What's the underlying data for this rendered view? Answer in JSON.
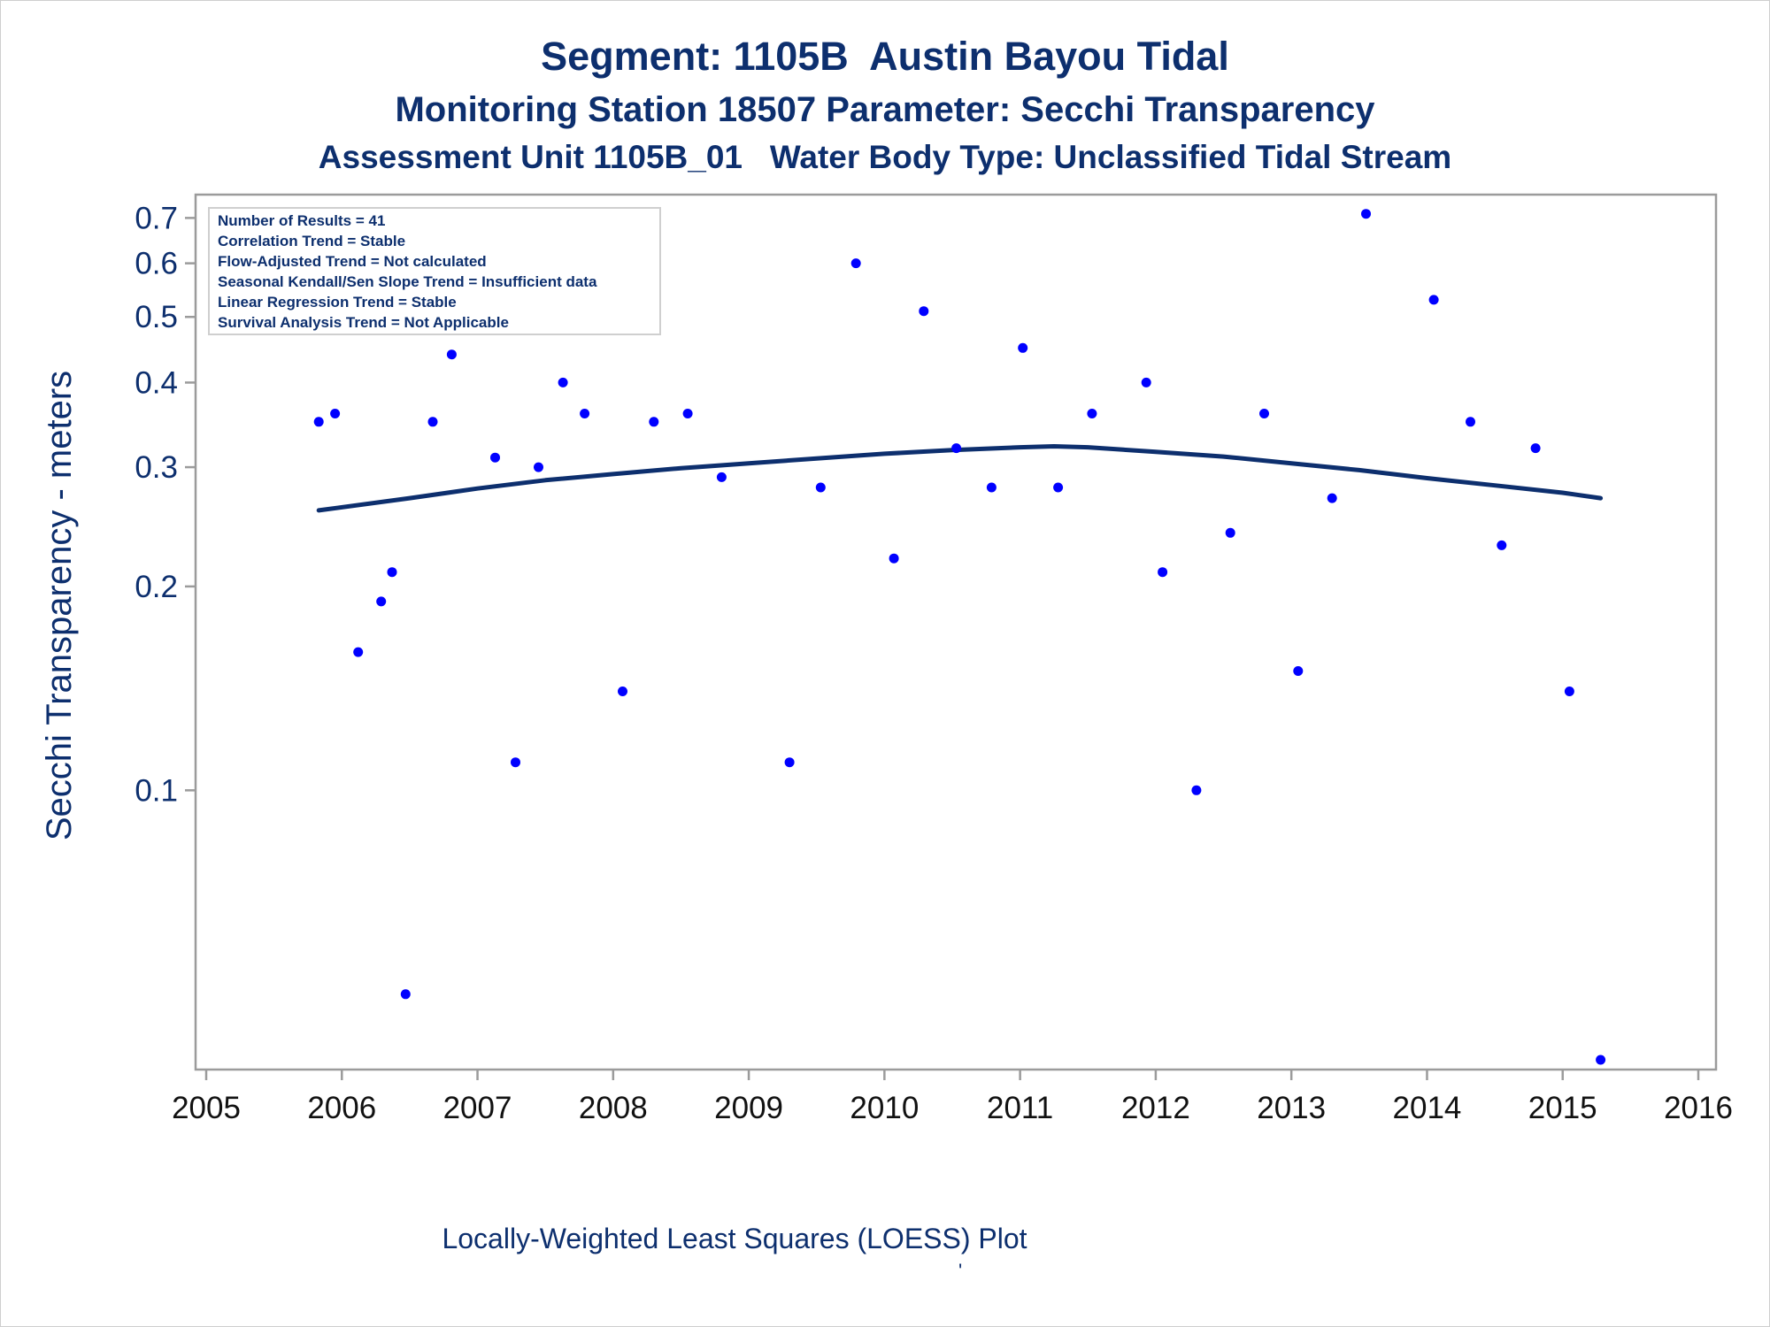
{
  "titles": {
    "line1": "Segment: 1105B  Austin Bayou Tidal",
    "line2": "Monitoring Station 18507 Parameter: Secchi Transparency",
    "line3": "Assessment Unit 1105B_01   Water Body Type: Unclassified Tidal Stream"
  },
  "info_box": [
    "Number of Results = 41",
    "Correlation Trend = Stable",
    "Flow-Adjusted Trend = Not calculated",
    "Seasonal Kendall/Sen Slope Trend = Insufficient data",
    "Linear Regression Trend = Stable",
    "Survival Analysis Trend = Not Applicable"
  ],
  "footnote": "Locally-Weighted Least Squares (LOESS) Plot",
  "footmark": "'",
  "colors": {
    "text": "#0d2f6e",
    "points": "#0000ff",
    "loess": "#0d2f6e",
    "axis": "#9b9b9b"
  },
  "chart_data": {
    "type": "scatter",
    "ylabel": "Secchi Transparency - meters",
    "xlabel": "",
    "y_scale": "log",
    "xlim": [
      2005,
      2016
    ],
    "ylim": [
      0.04,
      0.72
    ],
    "x_ticks": [
      2005,
      2006,
      2007,
      2008,
      2009,
      2010,
      2011,
      2012,
      2013,
      2014,
      2015,
      2016
    ],
    "y_ticks": [
      0.1,
      0.2,
      0.3,
      0.4,
      0.5,
      0.6,
      0.7
    ],
    "y_tick_labels": [
      "0.1",
      "0.2",
      "0.3",
      "0.4",
      "0.5",
      "0.6",
      "0.7"
    ],
    "grid": false,
    "series": [
      {
        "type": "scatter",
        "points": [
          [
            2005.83,
            0.35
          ],
          [
            2005.95,
            0.36
          ],
          [
            2006.12,
            0.16
          ],
          [
            2006.29,
            0.19
          ],
          [
            2006.37,
            0.21
          ],
          [
            2006.47,
            0.05
          ],
          [
            2006.67,
            0.35
          ],
          [
            2006.81,
            0.44
          ],
          [
            2007.13,
            0.31
          ],
          [
            2007.28,
            0.11
          ],
          [
            2007.45,
            0.3
          ],
          [
            2007.63,
            0.4
          ],
          [
            2007.79,
            0.36
          ],
          [
            2008.07,
            0.14
          ],
          [
            2008.3,
            0.35
          ],
          [
            2008.55,
            0.36
          ],
          [
            2008.8,
            0.29
          ],
          [
            2009.3,
            0.11
          ],
          [
            2009.53,
            0.28
          ],
          [
            2009.79,
            0.6
          ],
          [
            2010.07,
            0.22
          ],
          [
            2010.29,
            0.51
          ],
          [
            2010.53,
            0.32
          ],
          [
            2010.79,
            0.28
          ],
          [
            2011.02,
            0.45
          ],
          [
            2011.28,
            0.28
          ],
          [
            2011.53,
            0.36
          ],
          [
            2011.93,
            0.4
          ],
          [
            2012.05,
            0.21
          ],
          [
            2012.3,
            0.1
          ],
          [
            2012.55,
            0.24
          ],
          [
            2012.8,
            0.36
          ],
          [
            2013.05,
            0.15
          ],
          [
            2013.3,
            0.27
          ],
          [
            2013.55,
            0.71
          ],
          [
            2014.05,
            0.53
          ],
          [
            2014.32,
            0.35
          ],
          [
            2014.55,
            0.23
          ],
          [
            2014.8,
            0.32
          ],
          [
            2015.05,
            0.14
          ],
          [
            2015.28,
            0.04
          ]
        ]
      },
      {
        "type": "line",
        "points": [
          [
            2005.83,
            0.259
          ],
          [
            2006.5,
            0.27
          ],
          [
            2007.0,
            0.279
          ],
          [
            2007.5,
            0.287
          ],
          [
            2008.0,
            0.293
          ],
          [
            2008.5,
            0.299
          ],
          [
            2009.0,
            0.304
          ],
          [
            2009.5,
            0.309
          ],
          [
            2010.0,
            0.314
          ],
          [
            2010.5,
            0.318
          ],
          [
            2011.0,
            0.321
          ],
          [
            2011.25,
            0.322
          ],
          [
            2011.5,
            0.321
          ],
          [
            2012.0,
            0.316
          ],
          [
            2012.5,
            0.311
          ],
          [
            2013.0,
            0.304
          ],
          [
            2013.5,
            0.297
          ],
          [
            2014.0,
            0.289
          ],
          [
            2014.5,
            0.282
          ],
          [
            2015.0,
            0.275
          ],
          [
            2015.28,
            0.27
          ]
        ]
      }
    ]
  }
}
